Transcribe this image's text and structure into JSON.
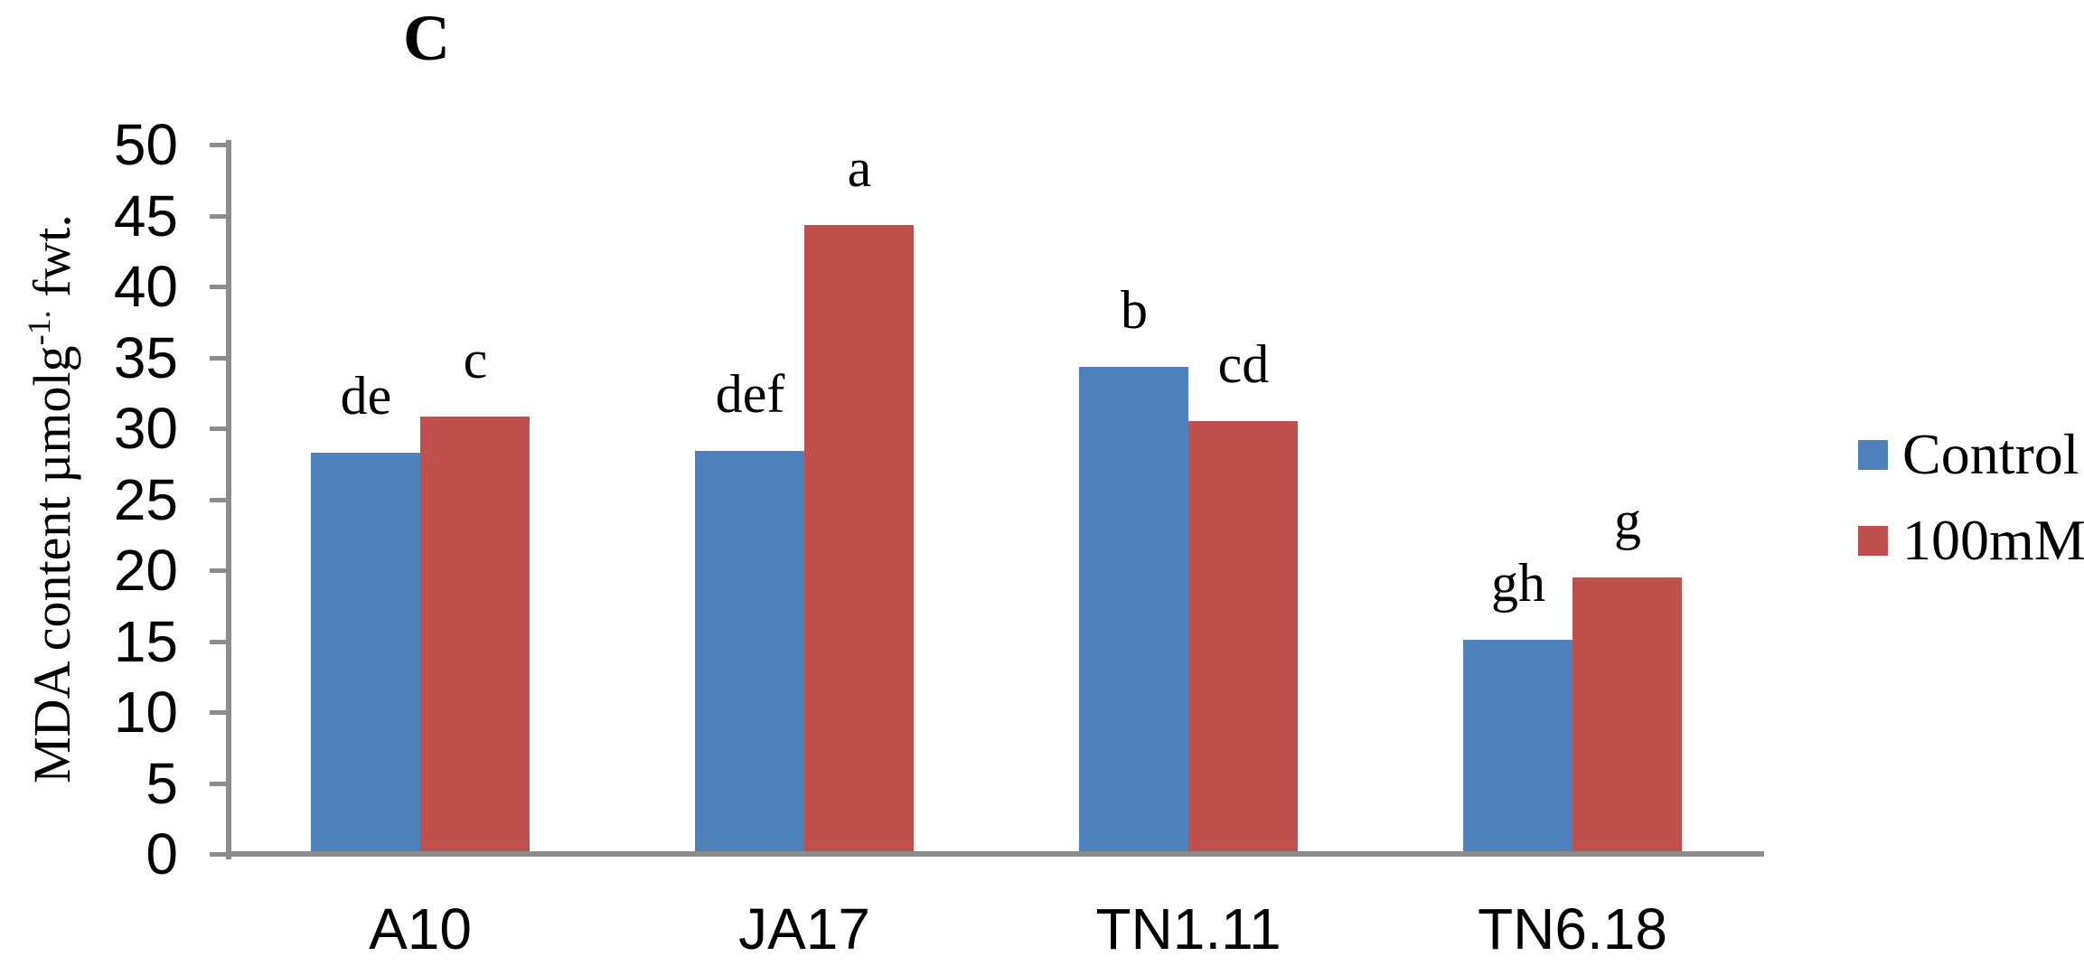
{
  "panel_label": "C",
  "colors": {
    "control": "#4F81BD",
    "treatment": "#C0504D",
    "axis": "#8C8C8C",
    "text": "#000000",
    "background": "#FFFFFF"
  },
  "chart_data": {
    "type": "bar",
    "title": "C",
    "categories": [
      "A10",
      "JA17",
      "TN1.11",
      "TN6.18"
    ],
    "series": [
      {
        "name": "Control",
        "color": "#4F81BD",
        "values": [
          28.3,
          28.4,
          34.3,
          15.1
        ],
        "sig_letters": [
          "de",
          "def",
          "b",
          "gh"
        ]
      },
      {
        "name": "100mM",
        "color": "#C0504D",
        "values": [
          30.8,
          44.3,
          30.5,
          19.5
        ],
        "sig_letters": [
          "c",
          "a",
          "cd",
          "g"
        ]
      }
    ],
    "xlabel": "",
    "ylabel": "MDA content µmolg-1. fwt.",
    "ylabel_parts": {
      "main": "MDA content µmolg",
      "sup": "-1.",
      "tail": " fwt."
    },
    "ylim": [
      0,
      50
    ],
    "yticks": [
      0,
      5,
      10,
      15,
      20,
      25,
      30,
      35,
      40,
      45,
      50
    ],
    "grid": false,
    "legend_position": "right",
    "axis_color": "#8C8C8C"
  }
}
